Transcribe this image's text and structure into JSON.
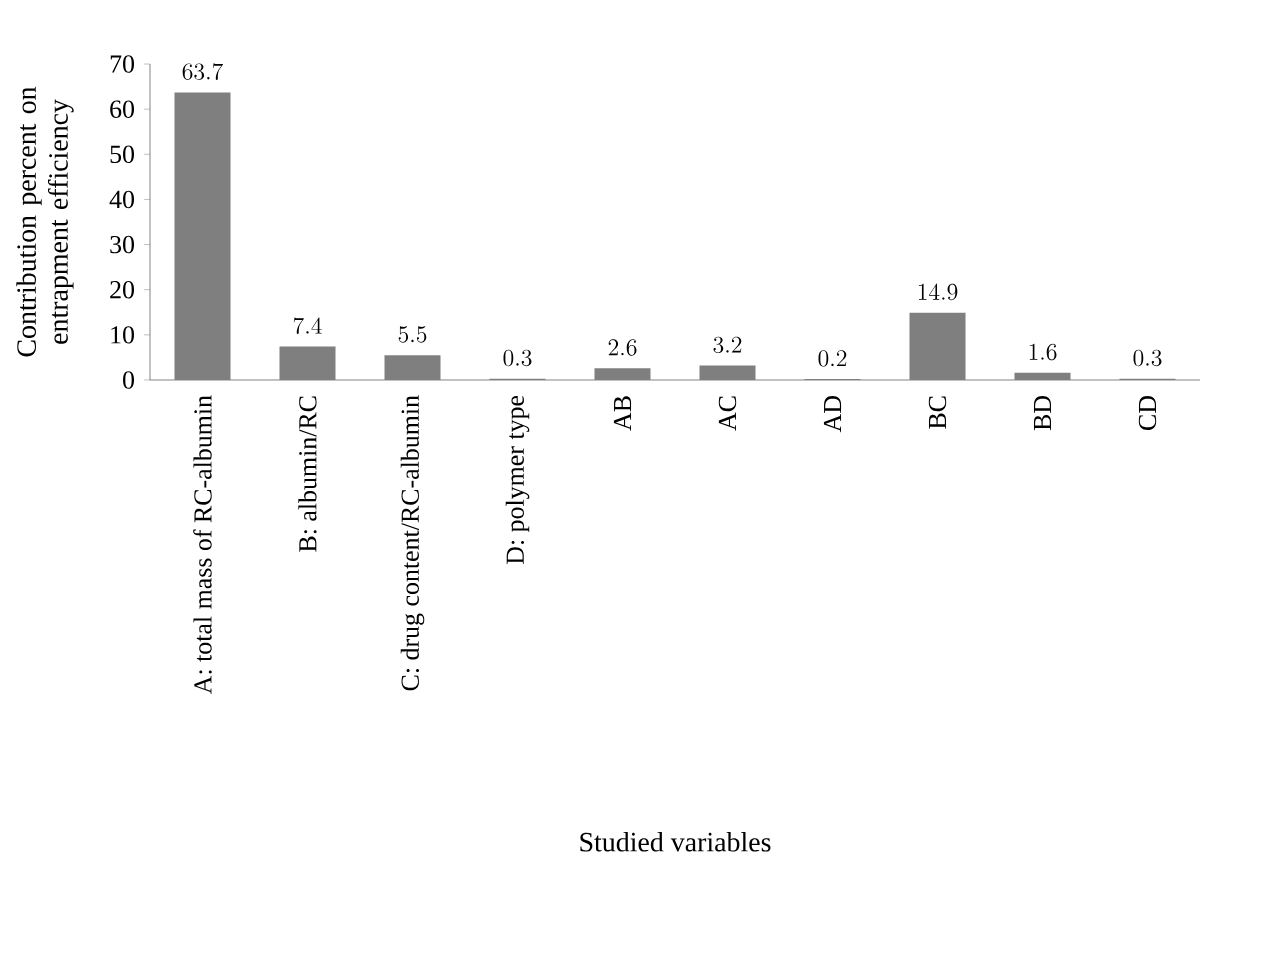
{
  "chart_data": {
    "type": "bar",
    "xlabel": "Studied variables",
    "ylabel": "Contribution percent on entrapment efficiency",
    "categories": [
      "A: total mass of RC-albumin",
      "B: albumin/RC",
      "C: drug content/RC-albumin",
      "D: polymer type",
      "AB",
      "AC",
      "AD",
      "BC",
      "BD",
      "CD"
    ],
    "values": [
      63.7,
      7.4,
      5.5,
      0.3,
      2.6,
      3.2,
      0.2,
      14.9,
      1.6,
      0.3
    ],
    "color": "#7f7f7f",
    "ylim": [
      0,
      70
    ],
    "yticks": [
      0,
      10,
      20,
      30,
      40,
      50,
      60,
      70
    ],
    "data_labels": true,
    "grid": false
  }
}
